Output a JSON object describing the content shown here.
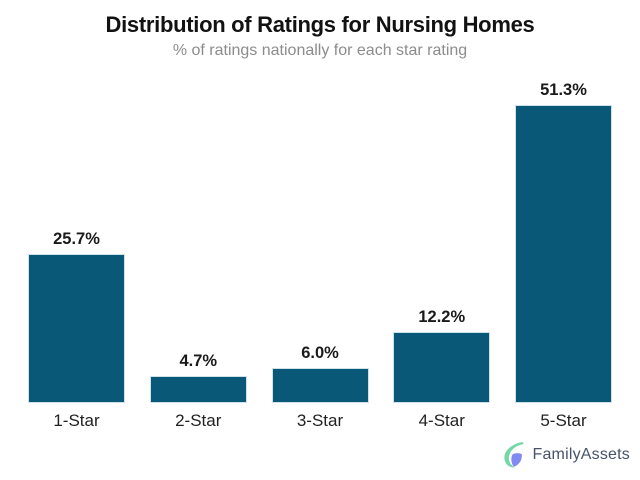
{
  "chart_data": {
    "type": "bar",
    "title": "Distribution of Ratings for Nursing Homes",
    "subtitle": "% of ratings nationally for each star rating",
    "categories": [
      "1-Star",
      "2-Star",
      "3-Star",
      "4-Star",
      "5-Star"
    ],
    "values": [
      25.7,
      4.7,
      6.0,
      12.2,
      51.3
    ],
    "value_labels": [
      "25.7%",
      "4.7%",
      "6.0%",
      "12.2%",
      "51.3%"
    ],
    "unit": "%",
    "ylim": [
      0,
      55
    ],
    "grid": false,
    "legend": false,
    "axis_lines": false,
    "bar_color": "#0a5878",
    "bar_edge_color": "#cfe2ea",
    "value_label_color": "#1a1a1a",
    "category_label_color": "#222222",
    "title_color": "#121212",
    "subtitle_color": "#8c8c8c"
  },
  "branding": {
    "logo_text": "FamilyAssets",
    "logo_icon": "familyassets-leaf-icon",
    "logo_text_color": "#47536b",
    "leaf_color": "#72d8a6",
    "shield_color": "#818af0"
  }
}
